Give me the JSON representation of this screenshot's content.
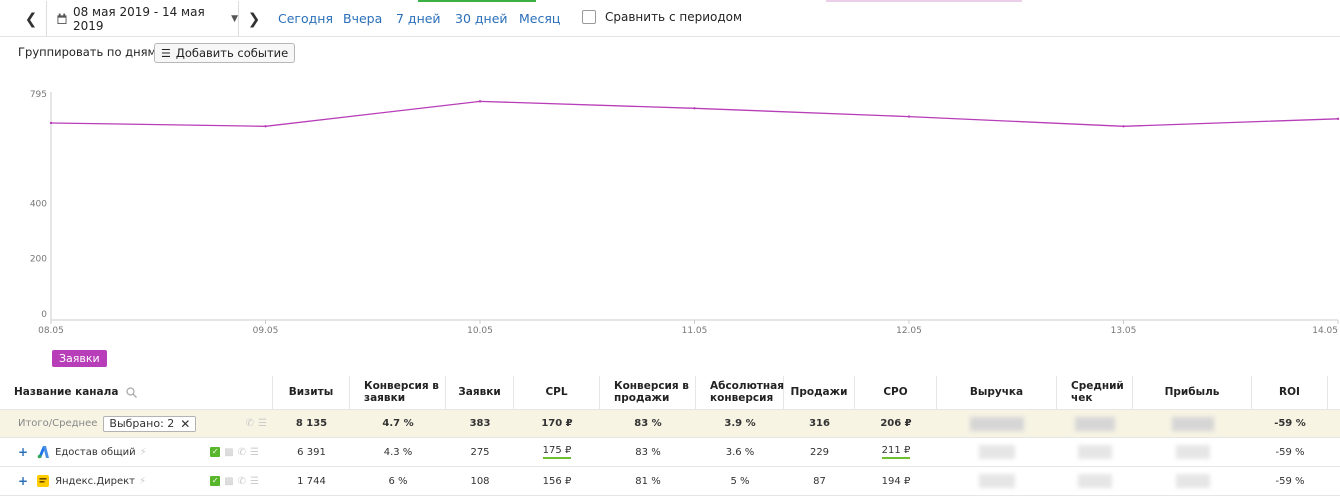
{
  "period": {
    "date_range": "08 мая 2019 - 14 мая 2019",
    "presets": [
      "Сегодня",
      "Вчера",
      "7 дней",
      "30 дней",
      "Месяц"
    ],
    "compare_label": "Сравнить с периодом"
  },
  "toolbar": {
    "group_by": "Группировать по дням",
    "add_event": "Добавить событие"
  },
  "chart_data": {
    "type": "line",
    "x": [
      "08.05",
      "09.05",
      "10.05",
      "11.05",
      "12.05",
      "13.05",
      "14.05"
    ],
    "series": [
      {
        "name": "Заявки",
        "values": [
          712,
          700,
          790,
          765,
          735,
          700,
          727
        ],
        "color": "#b83db8"
      }
    ],
    "y_ticks": [
      0,
      200,
      400,
      795
    ],
    "ylim": [
      0,
      795
    ],
    "grid": false
  },
  "table": {
    "columns": [
      "Название канала",
      "Визиты",
      "Конверсия в заявки",
      "Заявки",
      "CPL",
      "Конверсия в продажи",
      "Абсолютная конверсия",
      "Продажи",
      "CPO",
      "Выручка",
      "Средний чек",
      "Прибыль",
      "ROI"
    ],
    "total": {
      "label": "Итого/Среднее",
      "selected_chip": "Выбрано: 2",
      "values": [
        "8 135",
        "4.7 %",
        "383",
        "170 ₽",
        "83 %",
        "3.9 %",
        "316",
        "206 ₽",
        "",
        "",
        "",
        "-59 %"
      ]
    },
    "rows": [
      {
        "name": "Едостав общий",
        "values": [
          "6 391",
          "4.3 %",
          "275",
          "175 ₽",
          "83 %",
          "3.6 %",
          "229",
          "211 ₽",
          "",
          "",
          "",
          "-59 %"
        ]
      },
      {
        "name": "Яндекс.Директ",
        "values": [
          "1 744",
          "6 %",
          "108",
          "156 ₽",
          "81 %",
          "5 %",
          "87",
          "194 ₽",
          "",
          "",
          "",
          "-59 %"
        ]
      }
    ]
  }
}
